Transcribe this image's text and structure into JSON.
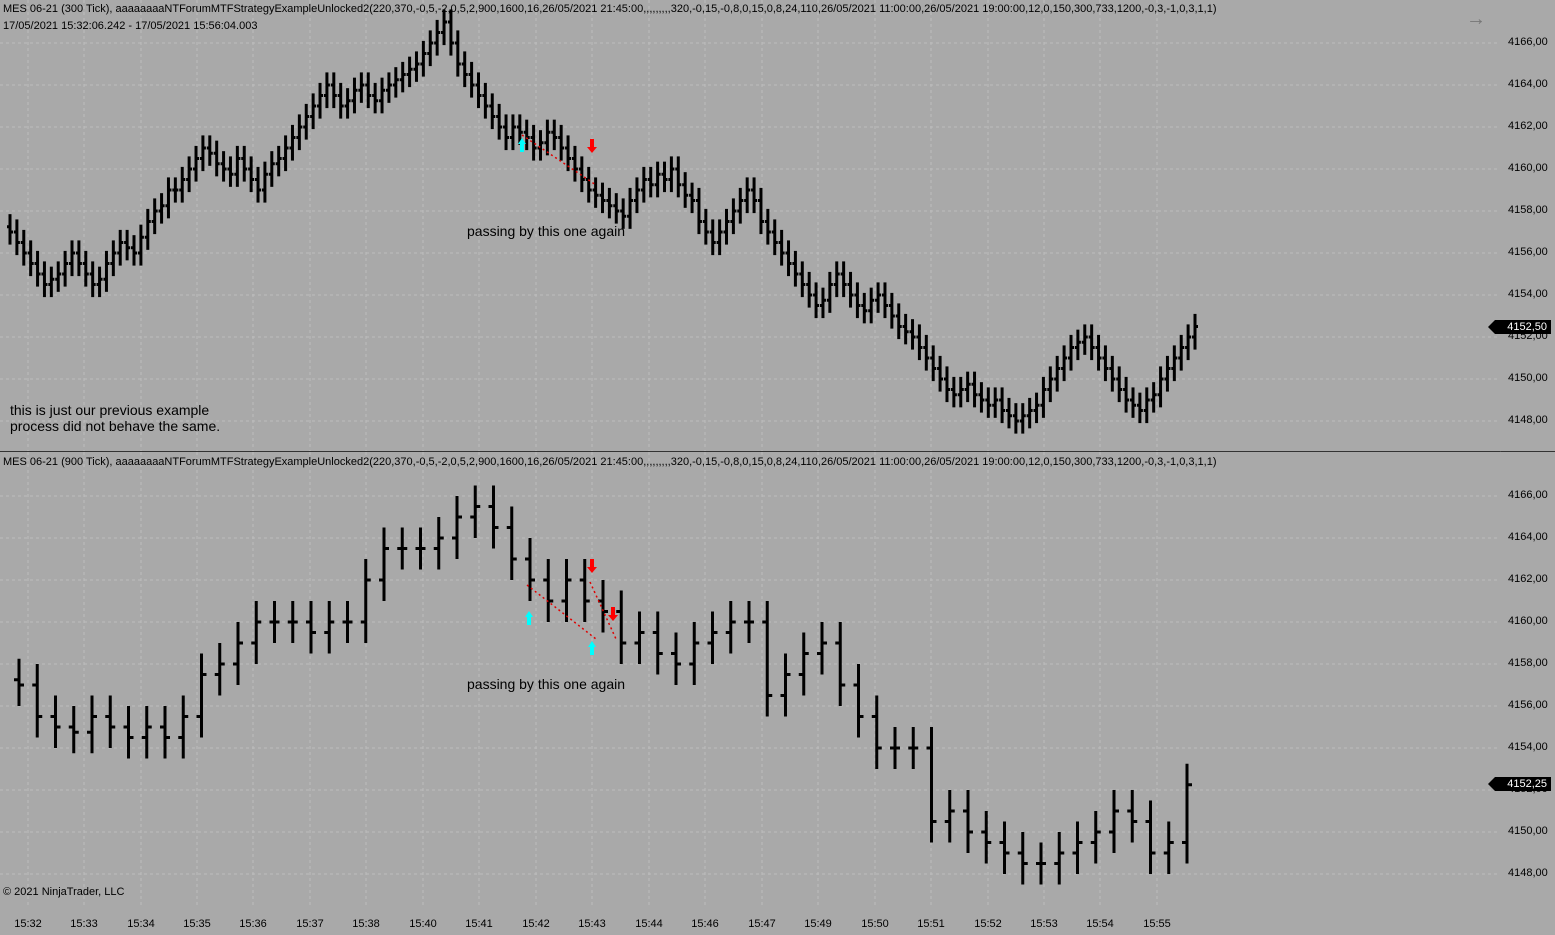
{
  "top_pane": {
    "title": "MES 06-21 (300 Tick), aaaaaaaaNTForumMTFStrategyExampleUnlocked2(220,370,-0,5,-2,0,5,2,900,1600,16,26/05/2021 21:45:00,,,,,,,,,320,-0,15,-0,8,0,15,0,8,24,110,26/05/2021 11:00:00,26/05/2021 19:00:00,12,0,150,300,733,1200,-0,3,-1,0,3,1,1)",
    "date_range": "17/05/2021 15:32:06.242 - 17/05/2021 15:56:04.003",
    "annotation": "passing by this one again",
    "note_line1": "this is just our previous example",
    "note_line2": "process did not behave the same.",
    "last_price": "4152,50",
    "y_ticks": [
      "4166,00",
      "4164,00",
      "4162,00",
      "4160,00",
      "4158,00",
      "4156,00",
      "4154,00",
      "4152,00",
      "4150,00",
      "4148,00"
    ]
  },
  "bottom_pane": {
    "title": "MES 06-21 (900 Tick), aaaaaaaaNTForumMTFStrategyExampleUnlocked2(220,370,-0,5,-2,0,5,2,900,1600,16,26/05/2021 21:45:00,,,,,,,,,320,-0,15,-0,8,0,15,0,8,24,110,26/05/2021 11:00:00,26/05/2021 19:00:00,12,0,150,300,733,1200,-0,3,-1,0,3,1,1)",
    "annotation": "passing by this one again",
    "last_price": "4152,25",
    "y_ticks": [
      "4166,00",
      "4164,00",
      "4162,00",
      "4160,00",
      "4158,00",
      "4156,00",
      "4154,00",
      "4152,00",
      "4150,00",
      "4148,00"
    ]
  },
  "x_ticks": [
    "15:32",
    "15:33",
    "15:34",
    "15:35",
    "15:36",
    "15:37",
    "15:38",
    "15:40",
    "15:41",
    "15:42",
    "15:43",
    "15:44",
    "15:46",
    "15:47",
    "15:49",
    "15:50",
    "15:51",
    "15:52",
    "15:53",
    "15:54",
    "15:55"
  ],
  "copyright": "© 2021 NinjaTrader, LLC",
  "colors": {
    "background": "#a9a9a9",
    "bars": "#000000",
    "grid": "#bdbdbd",
    "entry_marker": "#00ffff",
    "exit_marker": "#ff0000",
    "trade_line": "#e00000"
  },
  "icons": {
    "nav_arrow": "right-arrow-icon"
  },
  "chart_data": [
    {
      "type": "ohlc",
      "series_name": "MES 06-21 (300 Tick)",
      "ylim": [
        4147.5,
        4167.5
      ],
      "closes": [
        4157,
        4156.5,
        4156,
        4155.5,
        4155,
        4154.5,
        4154.75,
        4155,
        4155.5,
        4156,
        4155.5,
        4155,
        4154.5,
        4154.75,
        4155.5,
        4156,
        4156.5,
        4156.25,
        4156,
        4156.75,
        4157.5,
        4158,
        4158.25,
        4159,
        4159,
        4159.5,
        4160,
        4160.5,
        4161,
        4160.75,
        4160.25,
        4160,
        4159.75,
        4160.5,
        4160,
        4159.5,
        4159,
        4159.75,
        4160.25,
        4160.5,
        4161,
        4161.5,
        4162,
        4162.5,
        4163,
        4163.5,
        4164,
        4163.5,
        4163,
        4163.25,
        4163.75,
        4164,
        4163.5,
        4163.25,
        4163.75,
        4164,
        4164.25,
        4164.5,
        4164.75,
        4165,
        4165.5,
        4166,
        4166.5,
        4167,
        4166,
        4165,
        4164.5,
        4164,
        4163.5,
        4163,
        4162.5,
        4162,
        4161.5,
        4162,
        4161.75,
        4161.5,
        4161,
        4161.25,
        4161.75,
        4161.5,
        4161,
        4160.5,
        4160,
        4159.5,
        4159,
        4158.75,
        4158.5,
        4158.25,
        4158,
        4157.75,
        4158.5,
        4159,
        4159.5,
        4159.25,
        4159.75,
        4159.5,
        4160,
        4159.25,
        4158.75,
        4158.5,
        4157.5,
        4157,
        4156.5,
        4157,
        4157.5,
        4158,
        4158.5,
        4159,
        4158.5,
        4157.5,
        4157,
        4156.5,
        4156,
        4155.5,
        4155,
        4154.5,
        4154,
        4153.5,
        4153.75,
        4154.5,
        4155,
        4154.5,
        4154,
        4153.5,
        4153.25,
        4153.75,
        4154,
        4153.5,
        4153,
        4152.5,
        4152.25,
        4152,
        4151.5,
        4151,
        4150.5,
        4150,
        4149.5,
        4149.25,
        4149.5,
        4149.75,
        4149.25,
        4149,
        4148.75,
        4149,
        4148.5,
        4148.25,
        4148,
        4148.25,
        4148.5,
        4148.75,
        4149.5,
        4150,
        4150.5,
        4151,
        4151.5,
        4151.75,
        4152,
        4151.5,
        4151,
        4150.5,
        4150,
        4149.5,
        4149,
        4148.75,
        4148.5,
        4149,
        4149.25,
        4150,
        4150.5,
        4151,
        4151.5,
        4152,
        4152.5
      ]
    },
    {
      "type": "ohlc",
      "series_name": "MES 06-21 (900 Tick)",
      "ylim": [
        4147.5,
        4167.5
      ],
      "closes": [
        4157,
        4155.5,
        4155,
        4154.75,
        4155.5,
        4155,
        4154.5,
        4155,
        4154.5,
        4155.5,
        4157.5,
        4158,
        4159,
        4160,
        4160,
        4160,
        4159.5,
        4160,
        4160,
        4162,
        4163.5,
        4163.5,
        4163.5,
        4164,
        4165,
        4165.5,
        4164.5,
        4163,
        4162,
        4161,
        4162,
        4161,
        4160.5,
        4159,
        4159.5,
        4158.5,
        4158,
        4159,
        4159.5,
        4160,
        4160,
        4156.5,
        4157.5,
        4158.5,
        4159,
        4157,
        4155.5,
        4154,
        4154,
        4154,
        4150.5,
        4151,
        4150,
        4149.5,
        4149,
        4148.5,
        4148.5,
        4149,
        4149.5,
        4150,
        4151,
        4150.5,
        4149,
        4149.5,
        4152.25
      ]
    }
  ]
}
